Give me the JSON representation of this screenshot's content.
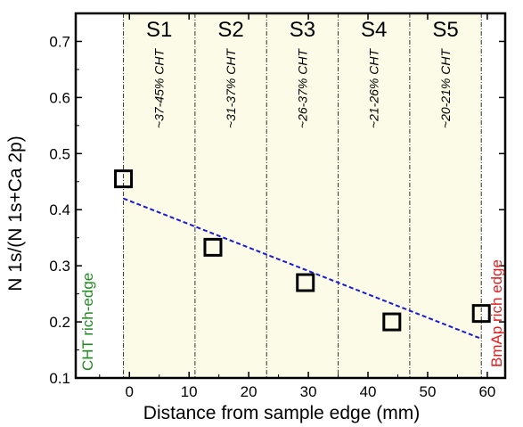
{
  "colors": {
    "shading": "#fbfbe7",
    "trendline": "#1a1ad6",
    "left_edge_label": "#1f8a1f",
    "right_edge_label": "#e01f1f"
  },
  "chart_data": {
    "type": "scatter",
    "xlabel": "Distance from sample edge (mm)",
    "ylabel": "N 1s/(N 1s+Ca 2p)",
    "xlim": [
      -9,
      63
    ],
    "ylim": [
      0.1,
      0.75
    ],
    "x_ticks": [
      0,
      10,
      20,
      30,
      40,
      50,
      60
    ],
    "y_ticks": [
      0.1,
      0.2,
      0.3,
      0.4,
      0.5,
      0.6,
      0.7
    ],
    "x_tick_labels": [
      "0",
      "10",
      "20",
      "30",
      "40",
      "50",
      "60"
    ],
    "y_tick_labels": [
      "0.1",
      "0.2",
      "0.3",
      "0.4",
      "0.5",
      "0.6",
      "0.7"
    ],
    "grid": false,
    "points": [
      {
        "x": -1,
        "y": 0.455
      },
      {
        "x": 14,
        "y": 0.333
      },
      {
        "x": 29.5,
        "y": 0.27
      },
      {
        "x": 44,
        "y": 0.2
      },
      {
        "x": 59,
        "y": 0.215
      }
    ],
    "trendline": {
      "style": "dashed",
      "x": [
        -1,
        59
      ],
      "y": [
        0.42,
        0.17
      ]
    },
    "regions": [
      {
        "label": "S1",
        "composition": "~37-45% CHT",
        "x_start": -1,
        "x_end": 11
      },
      {
        "label": "S2",
        "composition": "~31-37% CHT",
        "x_start": 11,
        "x_end": 23
      },
      {
        "label": "S3",
        "composition": "~26-37% CHT",
        "x_start": 23,
        "x_end": 35
      },
      {
        "label": "S4",
        "composition": "~21-26% CHT",
        "x_start": 35,
        "x_end": 47
      },
      {
        "label": "S5",
        "composition": "~20-21% CHT",
        "x_start": 47,
        "x_end": 59
      }
    ],
    "annotations": {
      "left_edge": "CHT rich-edge",
      "right_edge": "BmAp rich edge"
    }
  }
}
